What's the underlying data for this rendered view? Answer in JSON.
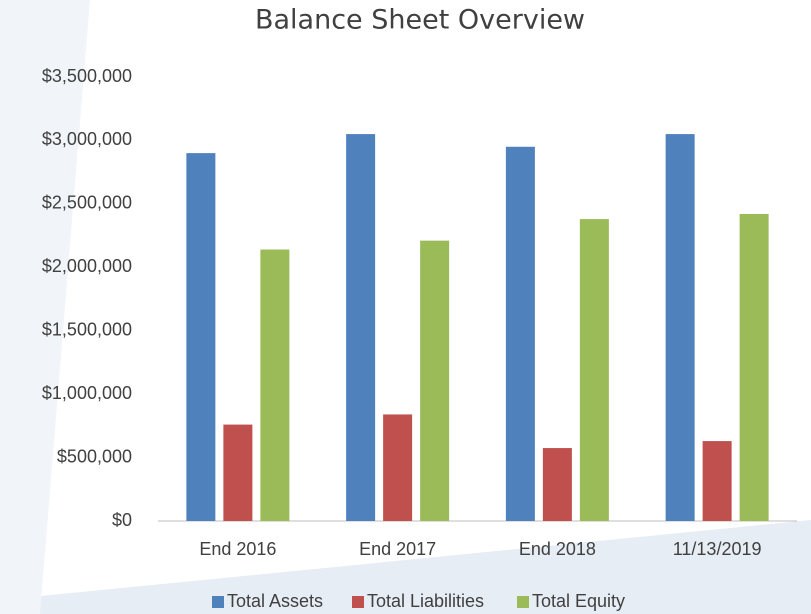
{
  "chart_data": {
    "type": "bar",
    "title": "Balance Sheet Overview",
    "categories": [
      "End 2016",
      "End 2017",
      "End 2018",
      "11/13/2019"
    ],
    "series": [
      {
        "name": "Total Assets",
        "color": "#4f81bd",
        "values": [
          2900000,
          3050000,
          2950000,
          3050000
        ]
      },
      {
        "name": "Total Liabilities",
        "color": "#c0504d",
        "values": [
          760000,
          840000,
          575000,
          630000
        ]
      },
      {
        "name": "Total Equity",
        "color": "#9bbb59",
        "values": [
          2140000,
          2210000,
          2380000,
          2420000
        ]
      }
    ],
    "ylim": [
      0,
      3500000
    ],
    "yticks": [
      {
        "value": 0,
        "label": "$0"
      },
      {
        "value": 500000,
        "label": "$500,000"
      },
      {
        "value": 1000000,
        "label": "$1,000,000"
      },
      {
        "value": 1500000,
        "label": "$1,500,000"
      },
      {
        "value": 2000000,
        "label": "$2,000,000"
      },
      {
        "value": 2500000,
        "label": "$2,500,000"
      },
      {
        "value": 3000000,
        "label": "$3,000,000"
      },
      {
        "value": 3500000,
        "label": "$3,500,000"
      }
    ],
    "grid": false,
    "legend": "bottom"
  }
}
